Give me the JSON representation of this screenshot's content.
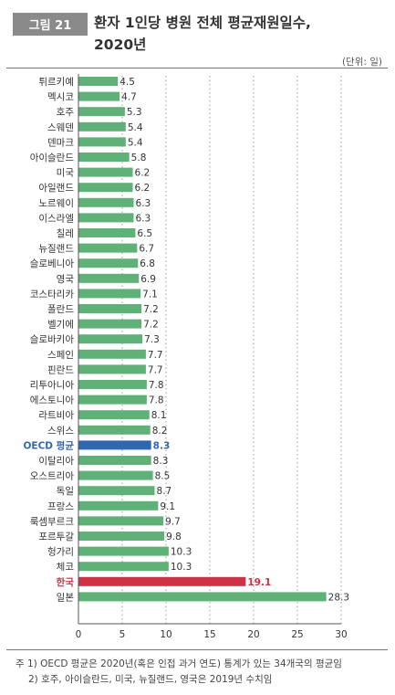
{
  "figure": {
    "label": "그림 21",
    "title_line1": "환자 1인당 병원 전체 평균재원일수,",
    "title_line2": "2020년",
    "unit": "(단위: 일)"
  },
  "colors": {
    "bar": "#5fb178",
    "oecd": "#2f67b1",
    "korea": "#cd3344",
    "oecd_text": "#2f67b1",
    "korea_text": "#cd3344"
  },
  "chart_data": {
    "type": "bar",
    "orientation": "horizontal",
    "categories": [
      "튀르키예",
      "멕시코",
      "호주",
      "스웨덴",
      "덴마크",
      "아이슬란드",
      "미국",
      "아일랜드",
      "노르웨이",
      "이스라엘",
      "칠레",
      "뉴질랜드",
      "슬로베니아",
      "영국",
      "코스타리카",
      "폴란드",
      "벨기에",
      "슬로바키아",
      "스페인",
      "핀란드",
      "리투아니아",
      "에스토니아",
      "라트비아",
      "스위스",
      "OECD 평균",
      "이탈리아",
      "오스트리아",
      "독일",
      "프랑스",
      "룩셈부르크",
      "포르투갈",
      "헝가리",
      "체코",
      "한국",
      "일본"
    ],
    "values": [
      4.5,
      4.7,
      5.3,
      5.4,
      5.4,
      5.8,
      6.2,
      6.2,
      6.3,
      6.3,
      6.5,
      6.7,
      6.8,
      6.9,
      7.1,
      7.2,
      7.2,
      7.3,
      7.7,
      7.7,
      7.8,
      7.8,
      8.1,
      8.2,
      8.3,
      8.3,
      8.5,
      8.7,
      9.1,
      9.7,
      9.8,
      10.3,
      10.3,
      19.1,
      28.3
    ],
    "value_labels": [
      "4.5",
      "4.7",
      "5.3",
      "5.4",
      "5.4",
      "5.8",
      "6.2",
      "6.2",
      "6.3",
      "6.3",
      "6.5",
      "6.7",
      "6.8",
      "6.9",
      "7.1",
      "7.2",
      "7.2",
      "7.3",
      "7.7",
      "7.7",
      "7.8",
      "7.8",
      "8.1",
      "8.2",
      "8.3",
      "8.3",
      "8.5",
      "8.7",
      "9.1",
      "9.7",
      "9.8",
      "10.3",
      "10.3",
      "19.1",
      "28.3"
    ],
    "highlight": {
      "OECD 평균": "oecd",
      "한국": "korea"
    },
    "xlim": [
      0,
      30
    ],
    "xticks": [
      0,
      5,
      10,
      15,
      20,
      25,
      30
    ],
    "xtick_labels": [
      "0",
      "5",
      "10",
      "15",
      "20",
      "25",
      "30"
    ],
    "grid": "vertical dotted"
  },
  "notes": {
    "line1": "주 1) OECD 평균은 2020년(혹은 인접 과거 연도) 통계가 있는 34개국의 평균임",
    "line2": "2) 호주, 아이슬란드, 미국, 뉴질랜드, 영국은 2019년 수치임"
  }
}
